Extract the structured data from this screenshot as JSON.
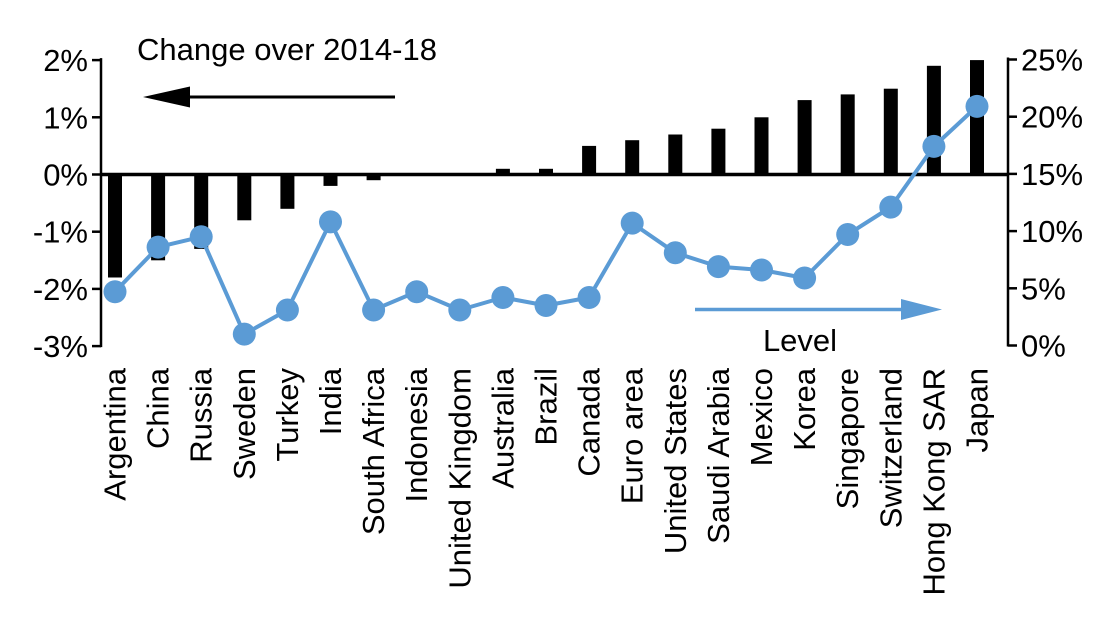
{
  "chart_data": {
    "type": "bar",
    "subtype": "dual-axis bar + line",
    "title": "Change over 2014-18",
    "categories": [
      "Argentina",
      "China",
      "Russia",
      "Sweden",
      "Turkey",
      "India",
      "South Africa",
      "Indonesia",
      "United Kingdom",
      "Australia",
      "Brazil",
      "Canada",
      "Euro area",
      "United States",
      "Saudi Arabia",
      "Mexico",
      "Korea",
      "Singapore",
      "Switzerland",
      "Hong Kong SAR",
      "Japan"
    ],
    "series": [
      {
        "name": "Change over 2014-18",
        "kind": "bar",
        "axis": "left",
        "color": "#000000",
        "values": [
          -1.8,
          -1.5,
          -1.3,
          -0.8,
          -0.6,
          -0.2,
          -0.1,
          0.0,
          0.0,
          0.1,
          0.1,
          0.5,
          0.6,
          0.7,
          0.8,
          1.0,
          1.3,
          1.4,
          1.5,
          1.9,
          2.0
        ]
      },
      {
        "name": "Level",
        "kind": "line",
        "axis": "right",
        "color": "#5B9BD5",
        "values": [
          4.7,
          8.6,
          9.5,
          1.0,
          3.1,
          10.8,
          3.1,
          4.7,
          3.1,
          4.2,
          3.5,
          4.2,
          10.7,
          8.1,
          6.9,
          6.6,
          5.9,
          9.7,
          12.1,
          17.4,
          20.9
        ]
      }
    ],
    "left_axis": {
      "min": -3,
      "max": 2,
      "step": 1,
      "tick_labels": [
        "2%",
        "1%",
        "0%",
        "-1%",
        "-2%",
        "-3%"
      ]
    },
    "right_axis": {
      "min": 0,
      "max": 25,
      "step": 5,
      "tick_labels": [
        "25%",
        "20%",
        "15%",
        "10%",
        "5%",
        "0%"
      ]
    },
    "annotations": [
      {
        "id": "change",
        "text": "Change over 2014-18",
        "arrow": "left",
        "color": "#000000"
      },
      {
        "id": "level",
        "text": "Level",
        "arrow": "right",
        "color": "#5B9BD5"
      }
    ],
    "grid": false,
    "legend_position": "none",
    "background": "#ffffff"
  }
}
